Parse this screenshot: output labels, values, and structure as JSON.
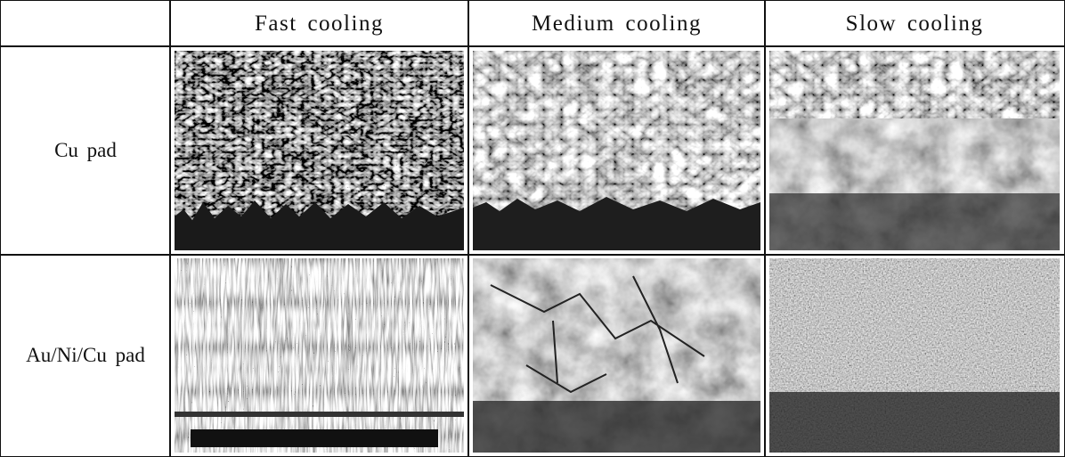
{
  "table": {
    "header": [
      "Fast cooling",
      "Medium cooling",
      "Slow cooling"
    ],
    "rows": [
      [
        "Cu pad"
      ],
      [
        "Au/Ni/Cu pad"
      ]
    ]
  }
}
